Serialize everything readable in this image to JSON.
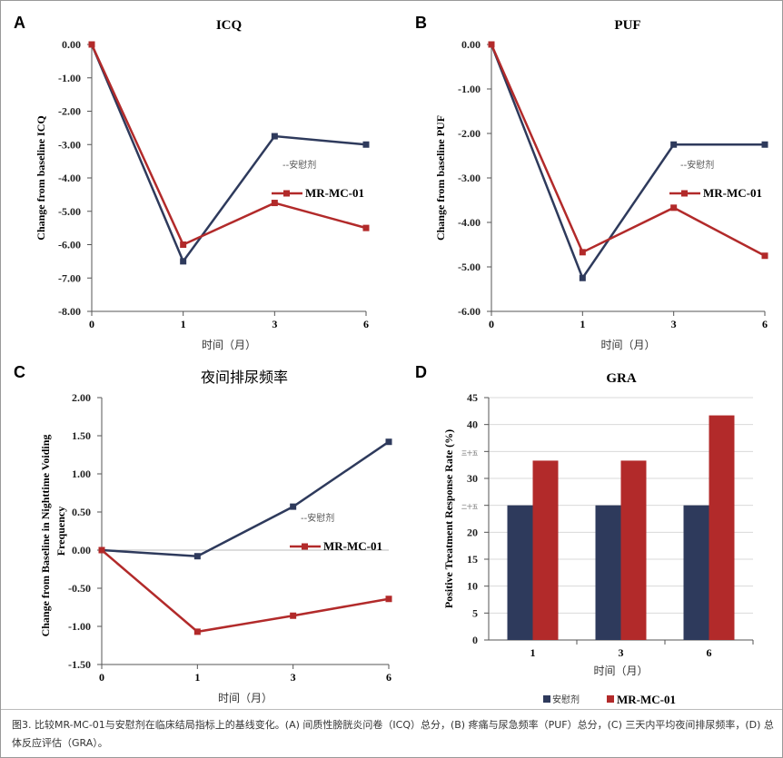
{
  "colors": {
    "placebo": "#2e3a5c",
    "drug": "#b22a2a",
    "grid": "#d9d9d9"
  },
  "chart_data": [
    {
      "panel": "A",
      "type": "line",
      "title": "ICQ",
      "ylabel": "Change from baseline ICQ",
      "xlabel": "时间（月）",
      "categories": [
        "0",
        "1",
        "3",
        "6"
      ],
      "ylim": [
        -8,
        0
      ],
      "yticks": [
        "0.00",
        "-1.00",
        "-2.00",
        "-3.00",
        "-4.00",
        "-5.00",
        "-6.00",
        "-7.00",
        "-8.00"
      ],
      "grid": false,
      "series": [
        {
          "name": "--安慰剂",
          "values": [
            0,
            -6.5,
            -2.75,
            -3.0
          ]
        },
        {
          "name": "MR-MC-01",
          "values": [
            0,
            -6.0,
            -4.75,
            -5.5
          ]
        }
      ]
    },
    {
      "panel": "B",
      "type": "line",
      "title": "PUF",
      "ylabel": "Change from baseline PUF",
      "xlabel": "时间（月）",
      "categories": [
        "0",
        "1",
        "3",
        "6"
      ],
      "ylim": [
        -6,
        0
      ],
      "yticks": [
        "0.00",
        "-1.00",
        "-2.00",
        "-3.00",
        "-4.00",
        "-5.00",
        "-6.00"
      ],
      "grid": false,
      "series": [
        {
          "name": "--安慰剂",
          "values": [
            0,
            -5.25,
            -2.25,
            -2.25
          ]
        },
        {
          "name": "MR-MC-01",
          "values": [
            0,
            -4.67,
            -3.67,
            -4.75
          ]
        }
      ]
    },
    {
      "panel": "C",
      "type": "line",
      "title": "夜间排尿频率",
      "ylabel": "Change from Baseline in Nighttime Voiding Frequency",
      "xlabel": "时间（月）",
      "categories": [
        "0",
        "1",
        "3",
        "6"
      ],
      "ylim": [
        -1.5,
        2
      ],
      "yticks": [
        "2.00",
        "1.50",
        "1.00",
        "0.50",
        "0.00",
        "-0.50",
        "-1.00",
        "-1.50"
      ],
      "grid": false,
      "series": [
        {
          "name": "--安慰剂",
          "values": [
            0,
            -0.08,
            0.57,
            1.42
          ]
        },
        {
          "name": "MR-MC-01",
          "values": [
            0,
            -1.07,
            -0.86,
            -0.64
          ]
        }
      ]
    },
    {
      "panel": "D",
      "type": "bar",
      "title": "GRA",
      "ylabel": "Positive Treatment Response Rate (%)",
      "xlabel": "时间（月）",
      "categories": [
        "1",
        "3",
        "6"
      ],
      "ylim": [
        0,
        45
      ],
      "yticks": [
        "45",
        "40",
        "三十五",
        "30",
        "二十五",
        "20",
        "15",
        "10",
        "5",
        "0"
      ],
      "grid": true,
      "series": [
        {
          "name": "安慰剂",
          "values": [
            25,
            25,
            25
          ]
        },
        {
          "name": "MR-MC-01",
          "values": [
            33.3,
            33.3,
            41.7
          ]
        }
      ]
    }
  ],
  "caption": "图3. 比较MR-MC-01与安慰剂在临床结局指标上的基线变化。(A) 间质性膀胱炎问卷（ICQ）总分，(B) 疼痛与尿急频率（PUF）总分，(C) 三天内平均夜间排尿频率，(D) 总体反应评估（GRA）。"
}
